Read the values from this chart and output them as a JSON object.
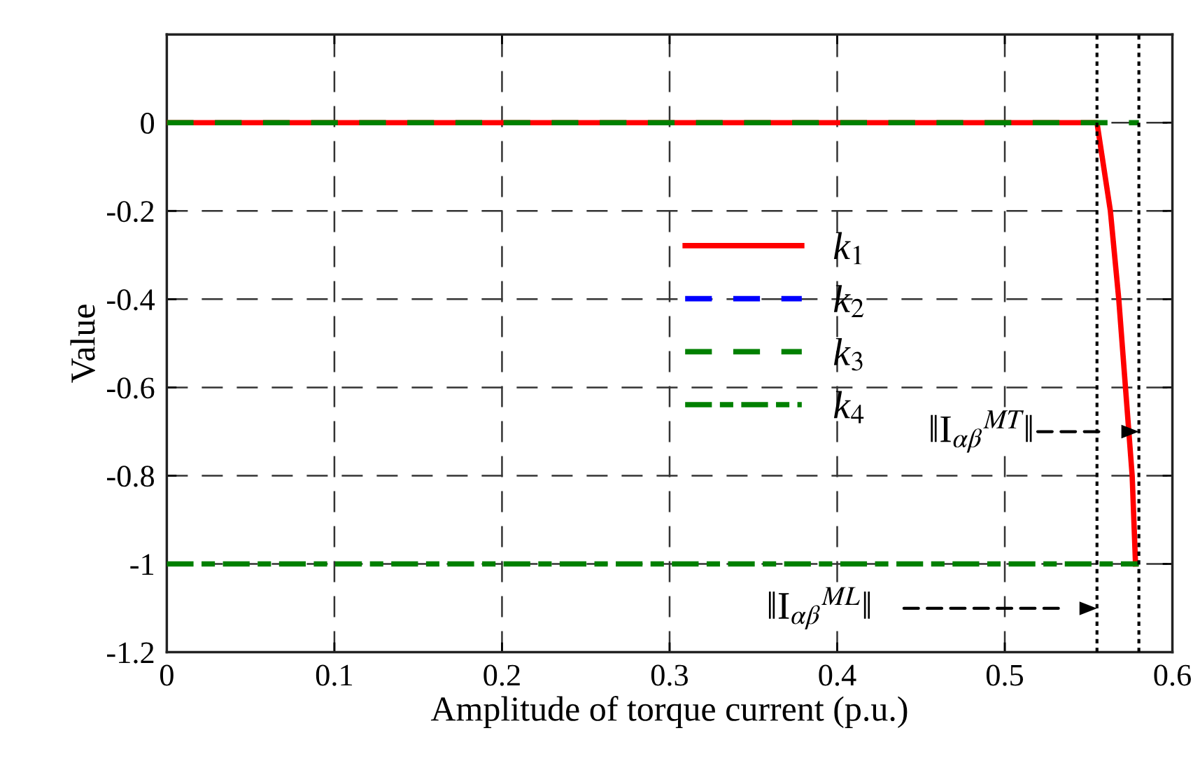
{
  "chart_data": {
    "type": "line",
    "xlabel": "Amplitude of torque current (p.u.)",
    "ylabel": "Value",
    "xlim": [
      0,
      0.6
    ],
    "xticks": [
      0,
      0.1,
      0.2,
      0.3,
      0.4,
      0.5,
      0.6
    ],
    "ylim": [
      -1.2,
      0.2
    ],
    "yticks": [
      -1.2,
      -1,
      -0.8,
      -0.6,
      -0.4,
      -0.2,
      0
    ],
    "grid": true,
    "legend": "center",
    "marker": "none",
    "series": [
      {
        "name": "k$_{1}$",
        "color": "#ff0000",
        "line_style": "solid",
        "x": [
          0,
          0.555,
          0.563,
          0.568,
          0.572,
          0.576,
          0.578
        ],
        "values": [
          0,
          0,
          -0.2,
          -0.4,
          -0.6,
          -0.8,
          -1
        ]
      },
      {
        "name": "k$_{2}$",
        "color": "#0000ff",
        "line_style": "dashed"
      },
      {
        "name": "k$_{3}$",
        "color": "#008000",
        "line_style": "dashed",
        "x": [
          0,
          0.58
        ],
        "values": [
          0,
          0
        ]
      },
      {
        "name": "k$_{4}$",
        "color": "#008000",
        "line_style": "dashdot",
        "x": [
          0,
          0.58
        ],
        "values": [
          -1,
          -1
        ]
      }
    ],
    "ref_lines": [
      {
        "axis": "x",
        "value": 0.555,
        "color": "#000000",
        "line_style": "dotted"
      },
      {
        "axis": "x",
        "value": 0.58,
        "color": "#000000",
        "line_style": "dotted"
      }
    ],
    "annotations": [
      "‖I$_{αβ}$$^{MT}$‖",
      "‖I$_{αβ}$$^{ML}$‖"
    ]
  }
}
